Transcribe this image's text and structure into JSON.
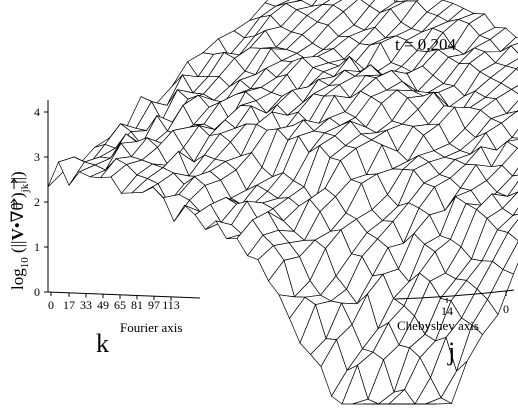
{
  "chart_data": {
    "type": "surface",
    "annotation": "t = 0.204",
    "zlabel": {
      "prefix": "log",
      "sub": "10",
      "open": " (||",
      "vec_v": "V",
      "dot": "•",
      "nabla": "∇",
      "theta": "θ",
      "close_paren": " )",
      "index": "jk",
      "close": "||)"
    },
    "z_ticks": [
      "4",
      "3",
      "2",
      "1",
      "0"
    ],
    "zlim": [
      0,
      4.7
    ],
    "fourier_axis": {
      "name": "Fourier axis",
      "symbol": "k",
      "ticks": [
        "0",
        "17",
        "33",
        "49",
        "65",
        "81",
        "97",
        "113"
      ]
    },
    "chebyshev_axis": {
      "name": "Chebyshev axis",
      "symbol": "j",
      "ticks": [
        "14",
        "0"
      ]
    },
    "surface_trend": {
      "fourier_edge_low_k": [
        3.7,
        4.2,
        4.0,
        3.3,
        2.9,
        2.3,
        1.4,
        0.6,
        -0.2
      ],
      "chebyshev_edge_high_k": [
        3.6,
        3.9,
        4.2,
        4.5,
        4.7
      ],
      "noise_amplitude": 0.5
    }
  },
  "colors": {
    "mesh_line": "#000000",
    "mesh_fill": "#ffffff",
    "background": "#ffffff"
  }
}
